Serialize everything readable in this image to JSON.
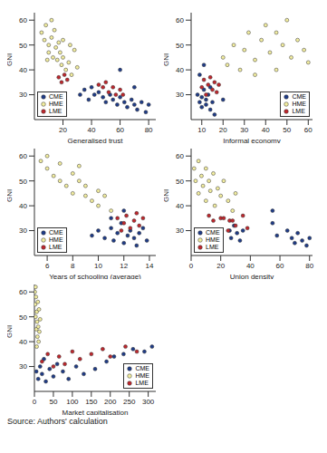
{
  "chart_data": [
    {
      "type": "scatter",
      "x_label": "Generalised trust",
      "y_label": "GNI",
      "xlim": [
        0,
        85
      ],
      "xticks": [
        20,
        40,
        60,
        80
      ],
      "ylim": [
        20,
        63
      ],
      "yticks": [
        30,
        40,
        50,
        60
      ],
      "legend": "lower left",
      "series": [
        {
          "name": "CME",
          "color": "#1f3c88",
          "x": [
            32,
            35,
            38,
            40,
            42,
            45,
            48,
            50,
            53,
            55,
            58,
            60,
            63,
            65,
            68,
            70,
            72,
            75,
            78,
            80,
            60,
            70
          ],
          "values": [
            30,
            32,
            28,
            33,
            30,
            31,
            29,
            27,
            30,
            28,
            26,
            29,
            27,
            25,
            28,
            26,
            24,
            27,
            23,
            26,
            40,
            33
          ]
        },
        {
          "name": "HME",
          "color": "#f3eea0",
          "x": [
            5,
            7,
            8,
            10,
            10,
            12,
            13,
            14,
            15,
            16,
            17,
            18,
            19,
            20,
            22,
            24,
            26,
            28,
            30,
            12,
            9,
            20,
            25
          ],
          "values": [
            55,
            52,
            58,
            50,
            47,
            53,
            45,
            56,
            49,
            44,
            51,
            47,
            42,
            45,
            40,
            43,
            38,
            48,
            41,
            60,
            44,
            52,
            50
          ]
        },
        {
          "name": "LME",
          "color": "#c0272d",
          "x": [
            17,
            19,
            21,
            23,
            45,
            48,
            50,
            52,
            55,
            57,
            60,
            62
          ],
          "values": [
            37,
            35,
            38,
            36,
            34,
            33,
            35,
            31,
            33,
            30,
            32,
            30
          ]
        }
      ]
    },
    {
      "type": "scatter",
      "x_label": "Informal economy",
      "y_label": "GNI",
      "xlim": [
        5,
        62
      ],
      "xticks": [
        10,
        20,
        30,
        40,
        50,
        60
      ],
      "ylim": [
        20,
        63
      ],
      "yticks": [
        30,
        40,
        50,
        60
      ],
      "legend": "lower right",
      "series": [
        {
          "name": "CME",
          "color": "#1f3c88",
          "x": [
            8,
            9,
            10,
            10,
            11,
            12,
            12,
            13,
            14,
            14,
            15,
            16,
            9,
            11,
            20
          ],
          "values": [
            30,
            27,
            25,
            29,
            32,
            26,
            28,
            30,
            24,
            33,
            27,
            22,
            38,
            42,
            28
          ]
        },
        {
          "name": "HME",
          "color": "#f3eea0",
          "x": [
            20,
            22,
            25,
            28,
            30,
            32,
            35,
            38,
            40,
            42,
            45,
            48,
            50,
            52,
            55,
            58,
            60,
            35,
            45
          ],
          "values": [
            45,
            42,
            50,
            40,
            48,
            55,
            44,
            52,
            58,
            47,
            55,
            50,
            60,
            45,
            52,
            48,
            43,
            38,
            40
          ]
        },
        {
          "name": "LME",
          "color": "#c0272d",
          "x": [
            10,
            11,
            12,
            13,
            14,
            15,
            16,
            17,
            18
          ],
          "values": [
            33,
            36,
            30,
            34,
            37,
            32,
            35,
            31,
            34
          ]
        }
      ]
    },
    {
      "type": "scatter",
      "x_label": "Years of schooling (average)",
      "y_label": "GNI",
      "xlim": [
        5,
        14.5
      ],
      "xticks": [
        6,
        8,
        10,
        12,
        14
      ],
      "ylim": [
        20,
        63
      ],
      "yticks": [
        30,
        40,
        50,
        60
      ],
      "legend": "lower left",
      "series": [
        {
          "name": "CME",
          "color": "#1f3c88",
          "x": [
            9.5,
            10,
            10.5,
            11,
            11.2,
            11.5,
            11.8,
            12,
            12.3,
            12.5,
            12.8,
            13,
            13.2,
            13.5,
            13.8,
            12,
            11
          ],
          "values": [
            28,
            30,
            27,
            31,
            26,
            29,
            33,
            25,
            28,
            30,
            27,
            24,
            29,
            31,
            26,
            38,
            35
          ]
        },
        {
          "name": "HME",
          "color": "#f3eea0",
          "x": [
            5.5,
            6,
            6.5,
            7,
            7,
            7.5,
            8,
            8,
            8.5,
            9,
            9,
            9.5,
            10,
            10,
            10.5,
            11,
            6,
            8.5
          ],
          "values": [
            58,
            55,
            52,
            57,
            50,
            48,
            53,
            45,
            50,
            44,
            48,
            42,
            46,
            40,
            44,
            38,
            60,
            56
          ]
        },
        {
          "name": "LME",
          "color": "#c0272d",
          "x": [
            11.5,
            12,
            12.2,
            12.5,
            12.8,
            13,
            13.2,
            13.5,
            11.8
          ],
          "values": [
            35,
            33,
            36,
            31,
            34,
            37,
            32,
            35,
            30
          ]
        }
      ]
    },
    {
      "type": "scatter",
      "x_label": "Union density",
      "y_label": "GNI",
      "xlim": [
        0,
        82
      ],
      "xticks": [
        0,
        20,
        40,
        60,
        80
      ],
      "ylim": [
        20,
        63
      ],
      "yticks": [
        30,
        40,
        50,
        60
      ],
      "legend": "lower left",
      "series": [
        {
          "name": "CME",
          "color": "#1f3c88",
          "x": [
            26,
            27,
            29,
            31,
            33,
            35,
            55,
            55,
            58,
            65,
            68,
            70,
            72,
            75,
            78,
            80
          ],
          "values": [
            30,
            27,
            32,
            29,
            26,
            30,
            38,
            33,
            28,
            30,
            27,
            25,
            29,
            26,
            24,
            27
          ]
        },
        {
          "name": "HME",
          "color": "#f3eea0",
          "x": [
            2,
            3,
            5,
            5,
            7,
            8,
            10,
            10,
            12,
            13,
            15,
            16,
            18,
            20,
            22,
            25,
            28,
            30
          ],
          "values": [
            55,
            50,
            58,
            45,
            52,
            48,
            55,
            42,
            50,
            46,
            53,
            40,
            47,
            44,
            50,
            42,
            38,
            45
          ]
        },
        {
          "name": "LME",
          "color": "#c0272d",
          "x": [
            12,
            15,
            26,
            20,
            22,
            25,
            28,
            30,
            35,
            38
          ],
          "values": [
            36,
            34,
            34,
            35,
            35,
            30,
            34,
            32,
            36,
            31
          ]
        }
      ]
    },
    {
      "type": "scatter",
      "x_label": "Market capitalisation",
      "y_label": "GNI",
      "xlim": [
        0,
        320
      ],
      "xticks": [
        0,
        50,
        100,
        150,
        200,
        250,
        300
      ],
      "ylim": [
        20,
        63
      ],
      "yticks": [
        30,
        40,
        50,
        60
      ],
      "legend": "lower right",
      "series": [
        {
          "name": "CME",
          "color": "#1f3c88",
          "x": [
            5,
            10,
            15,
            20,
            25,
            30,
            40,
            50,
            60,
            75,
            90,
            110,
            130,
            160,
            190,
            210,
            235,
            260,
            290,
            310
          ],
          "values": [
            28,
            25,
            30,
            27,
            33,
            24,
            29,
            26,
            31,
            28,
            25,
            30,
            27,
            29,
            32,
            34,
            35,
            37,
            36,
            38
          ]
        },
        {
          "name": "HME",
          "color": "#f3eea0",
          "x": [
            1,
            2,
            3,
            4,
            5,
            6,
            7,
            8,
            9,
            10,
            11,
            12,
            13,
            15,
            3,
            6
          ],
          "values": [
            60,
            55,
            50,
            58,
            45,
            52,
            48,
            42,
            56,
            46,
            40,
            53,
            44,
            49,
            62,
            38
          ]
        },
        {
          "name": "LME",
          "color": "#c0272d",
          "x": [
            20,
            35,
            50,
            65,
            80,
            100,
            120,
            150,
            180,
            200,
            240,
            270
          ],
          "values": [
            32,
            35,
            30,
            34,
            31,
            36,
            33,
            35,
            37,
            34,
            38,
            36
          ]
        }
      ]
    }
  ],
  "source": "Source: Authors' calculation"
}
